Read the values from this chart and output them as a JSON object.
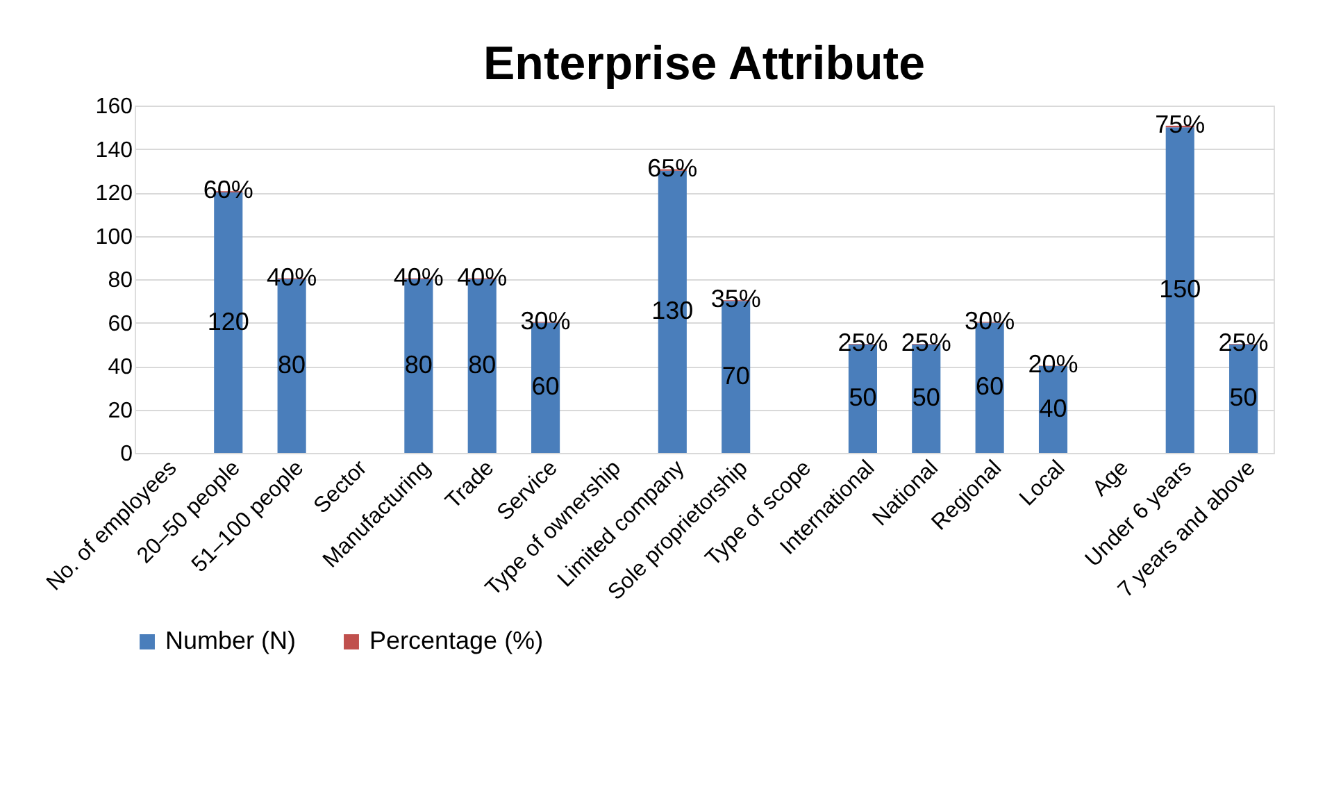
{
  "chart_data": {
    "type": "bar",
    "title": "Enterprise Attribute",
    "stacked": true,
    "categories": [
      "No. of employees",
      "20–50 people",
      "51–100 people",
      "Sector",
      "Manufacturing",
      "Trade",
      "Service",
      "Type of ownership",
      "Limited company",
      "Sole proprietorship",
      "Type of scope",
      "International",
      "National",
      "Regional",
      "Local",
      "Age",
      "Under 6 years",
      "7 years and above"
    ],
    "series": [
      {
        "name": "Number (N)",
        "color": "#4a7ebb",
        "values": [
          null,
          120,
          80,
          null,
          80,
          80,
          60,
          null,
          130,
          70,
          null,
          50,
          50,
          60,
          40,
          null,
          150,
          50
        ],
        "value_labels": [
          null,
          "120",
          "80",
          null,
          "80",
          "80",
          "60",
          null,
          "130",
          "70",
          null,
          "50",
          "50",
          "60",
          "40",
          null,
          "150",
          "50"
        ]
      },
      {
        "name": "Percentage (%)",
        "color": "#c0504d",
        "values": [
          null,
          0.6,
          0.4,
          null,
          0.4,
          0.4,
          0.3,
          null,
          0.65,
          0.35,
          null,
          0.25,
          0.25,
          0.3,
          0.2,
          null,
          0.75,
          0.25
        ],
        "value_labels": [
          null,
          "60%",
          "40%",
          null,
          "40%",
          "40%",
          "30%",
          null,
          "65%",
          "35%",
          null,
          "25%",
          "25%",
          "30%",
          "20%",
          null,
          "75%",
          "25%"
        ]
      }
    ],
    "ylim": [
      0,
      160
    ],
    "yticks": [
      0,
      20,
      40,
      60,
      80,
      100,
      120,
      140,
      160
    ],
    "grid": "y",
    "legend": "bottom"
  }
}
